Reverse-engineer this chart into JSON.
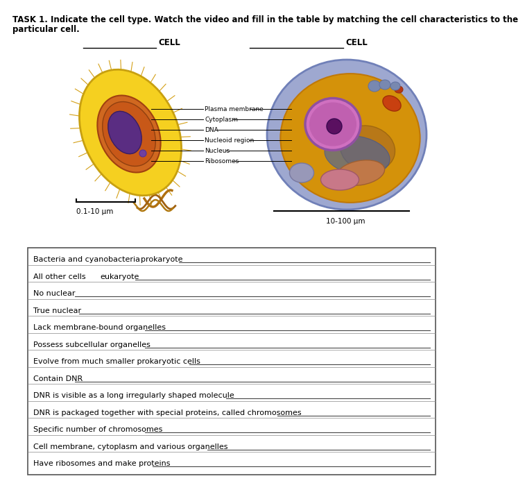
{
  "title_line1": "TASK 1. Indicate the cell type. Watch the video and fill in the table by matching the cell characteristics to the",
  "title_line2": "particular cell.",
  "title_fontsize": 8.5,
  "cell_label": "CELL",
  "scale_left": "0.1-10 μm",
  "scale_right": "10-100 μm",
  "annotations": [
    "Plasma membrane",
    "Cytoplasm",
    "DNA",
    "Nucleoid region",
    "Nucleus",
    "Ribosomes"
  ],
  "table_rows": [
    {
      "label": "Bacteria and cyanobacteria ",
      "answer": "prokaryote"
    },
    {
      "label": "All other cells ",
      "answer": "eukaryote"
    },
    {
      "label": "No nuclear ",
      "answer": ""
    },
    {
      "label": "True nuclear",
      "answer": ""
    },
    {
      "label": "Lack membrane-bound organelles",
      "answer": ""
    },
    {
      "label": "Possess subcellular organelles",
      "answer": ""
    },
    {
      "label": "Evolve from much smaller prokaryotic cells",
      "answer": ""
    },
    {
      "label": "Contain DNR",
      "answer": ""
    },
    {
      "label": "DNR is visible as a long irregularly shaped molecule",
      "answer": ""
    },
    {
      "label": "DNR is packaged together with special proteins, called chromosomes",
      "answer": ""
    },
    {
      "label": "Specific number of chromosomes",
      "answer": ""
    },
    {
      "label": "Cell membrane, cytoplasm and various organelles",
      "answer": ""
    },
    {
      "label": "Have ribosomes and make proteins",
      "answer": ""
    }
  ],
  "bg_color": "#ffffff",
  "text_color": "#000000"
}
